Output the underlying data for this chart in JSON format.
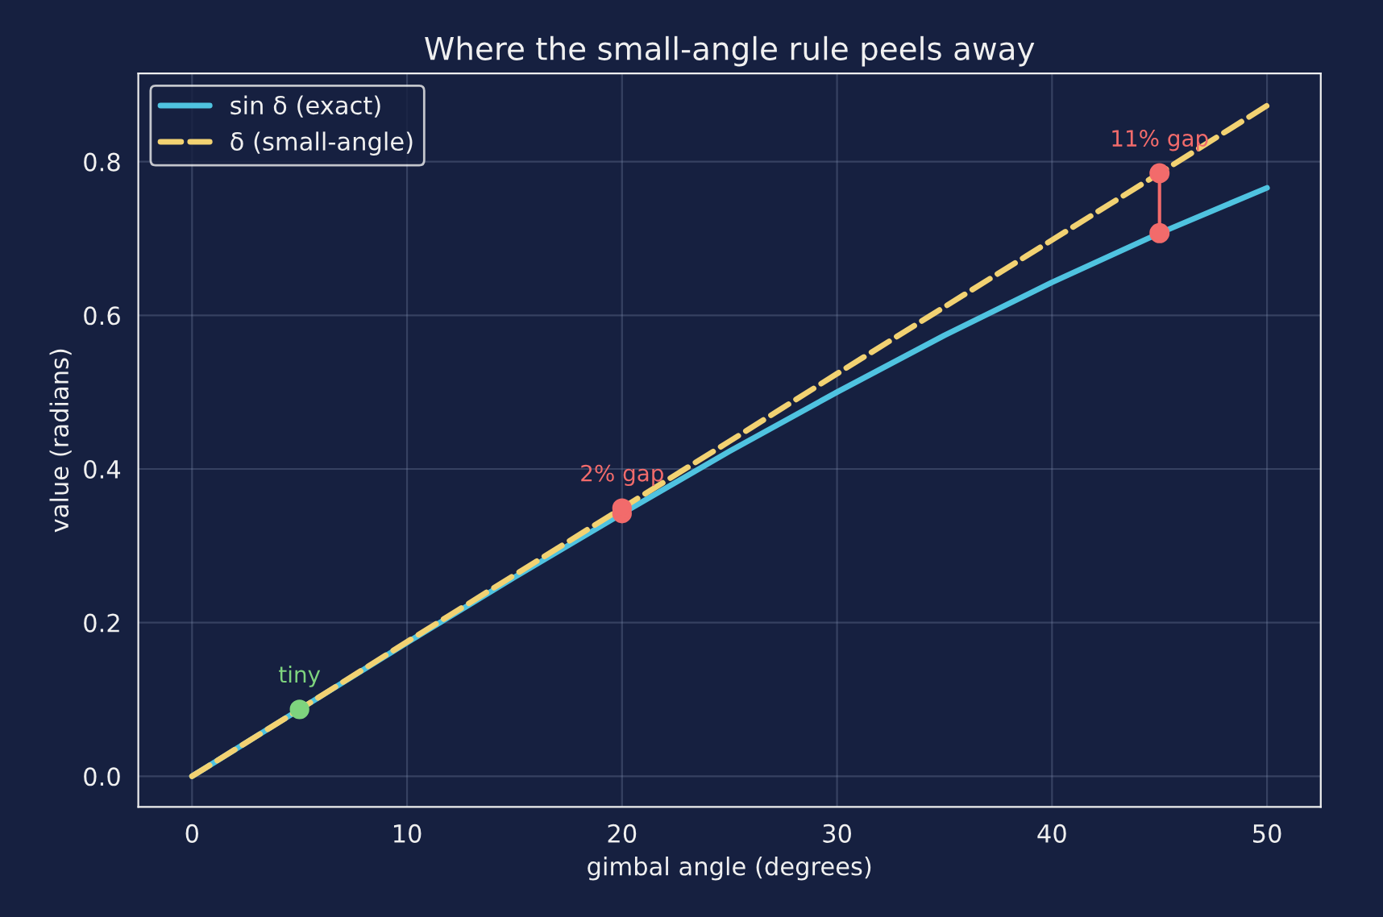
{
  "chart_data": {
    "type": "line",
    "title": "Where the small-angle rule peels away",
    "xlabel": "gimbal angle (degrees)",
    "ylabel": "value (radians)",
    "xlim": [
      -2.5,
      52.5
    ],
    "ylim": [
      -0.04,
      0.915
    ],
    "xticks": [
      0,
      10,
      20,
      30,
      40,
      50
    ],
    "yticks": [
      {
        "value": 0,
        "label": "0.0"
      },
      {
        "value": 0.2,
        "label": "0.2"
      },
      {
        "value": 0.4,
        "label": "0.4"
      },
      {
        "value": 0.6,
        "label": "0.6"
      },
      {
        "value": 0.8,
        "label": "0.8"
      }
    ],
    "grid": true,
    "legend": "top left",
    "series": [
      {
        "name": "sin δ (exact)",
        "color": "#4fc3e0",
        "line_style": "solid",
        "x": [
          0,
          5,
          10,
          15,
          20,
          25,
          30,
          35,
          40,
          45,
          50
        ],
        "values": [
          0,
          0.087,
          0.174,
          0.259,
          0.342,
          0.423,
          0.5,
          0.574,
          0.643,
          0.707,
          0.766
        ]
      },
      {
        "name": "δ (small-angle)",
        "color": "#f2d272",
        "line_style": "dashed",
        "x": [
          0,
          5,
          10,
          15,
          20,
          25,
          30,
          35,
          40,
          45,
          50
        ],
        "values": [
          0,
          0.087,
          0.175,
          0.262,
          0.349,
          0.436,
          0.524,
          0.611,
          0.698,
          0.785,
          0.873
        ]
      },
      {
        "type": "scatter",
        "color": "#f26b6b",
        "marker": "circle",
        "x": [
          20,
          20
        ],
        "values": [
          0.342,
          0.349
        ]
      },
      {
        "type": "line",
        "color": "#f26b6b",
        "line_style": "solid",
        "marker": "circle",
        "x": [
          45,
          45
        ],
        "values": [
          0.707,
          0.785
        ]
      },
      {
        "type": "scatter",
        "color": "#7ed47e",
        "marker": "circle",
        "x": [
          5
        ],
        "values": [
          0.087
        ]
      }
    ],
    "annotations": [
      {
        "text": "tiny",
        "x": 5,
        "y": 0.087
      },
      {
        "text": "2% gap",
        "x": 20,
        "y": 0.349
      },
      {
        "text": "11% gap",
        "x": 45,
        "y": 0.785
      }
    ]
  }
}
